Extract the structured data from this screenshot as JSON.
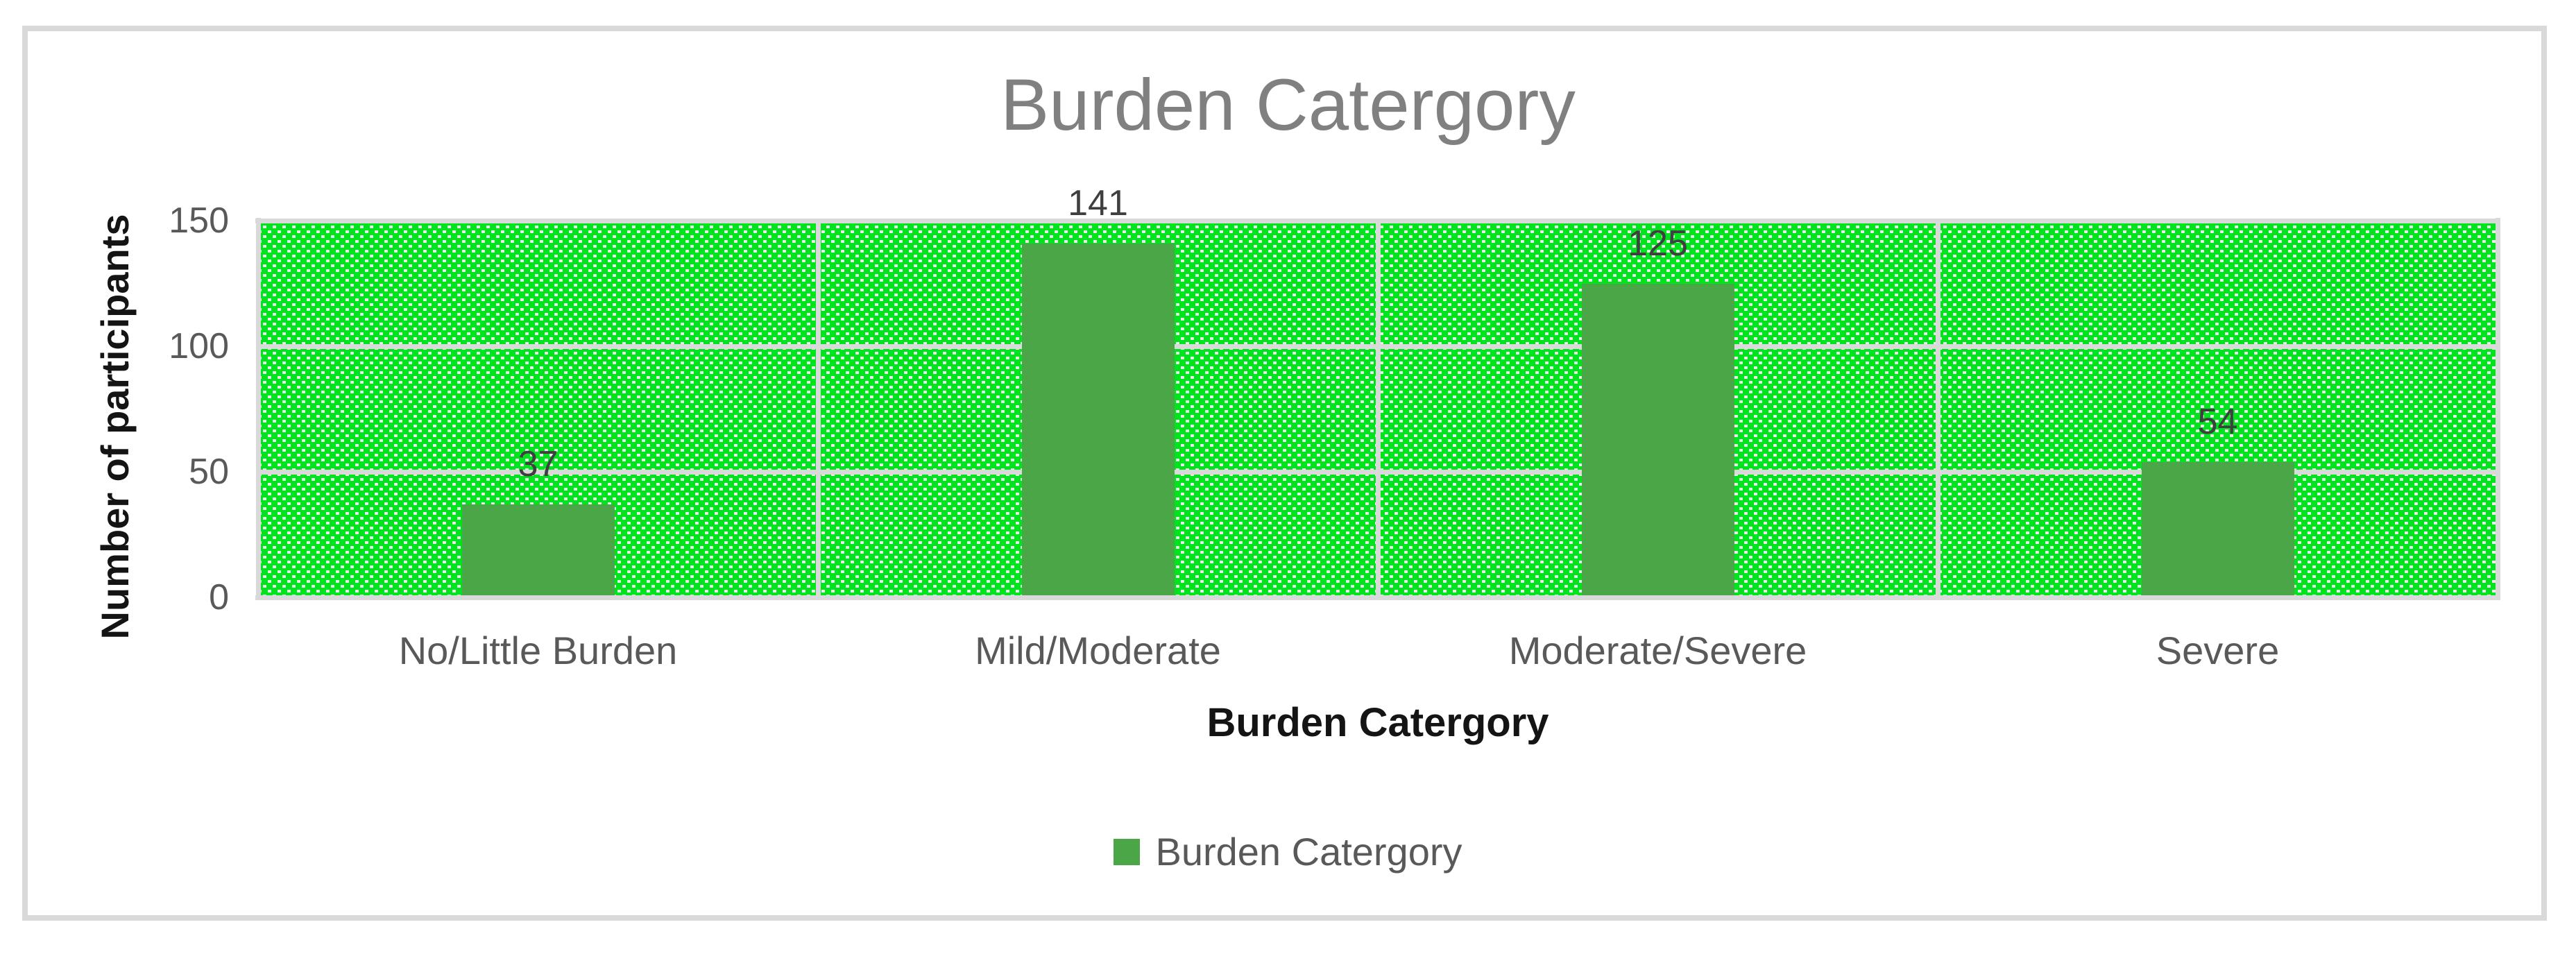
{
  "chart": {
    "title": "Burden Catergory",
    "y_axis": {
      "title": "Number of participants",
      "tick_labels": [
        "150",
        "100",
        "50",
        "0"
      ]
    },
    "x_axis": {
      "title": "Burden Catergory",
      "category_labels": [
        "No/Little Burden",
        "Mild/Moderate",
        "Moderate/Severe",
        "Severe"
      ]
    },
    "legend": {
      "label": "Burden Catergory"
    },
    "data_label_values": [
      "37",
      "141",
      "125",
      "54"
    ]
  },
  "chart_data": {
    "type": "bar",
    "title": "Burden Catergory",
    "categories": [
      "No/Little Burden",
      "Mild/Moderate",
      "Moderate/Severe",
      "Severe"
    ],
    "series": [
      {
        "name": "Burden Catergory",
        "values": [
          37,
          141,
          125,
          54
        ]
      }
    ],
    "xlabel": "Burden Catergory",
    "ylabel": "Number of participants",
    "ylim": [
      0,
      150
    ],
    "yticks": [
      0,
      50,
      100,
      150
    ],
    "grid": true,
    "legend_position": "bottom",
    "data_labels": "outside-end",
    "colors": {
      "bar_fill": "#4aa646",
      "plot_area_background": "#00e41e",
      "plot_area_pattern_dots": "#ebebeb",
      "pattern_style": "diagonal-down-dotted",
      "gridline": "#d9d9d9",
      "chart_border": "#d9d9d9",
      "title_text": "#808080",
      "axis_tick_text": "#595959",
      "axis_title_text": "#141414",
      "data_label_text": "#3f3f3f",
      "legend_text": "#595959"
    }
  }
}
